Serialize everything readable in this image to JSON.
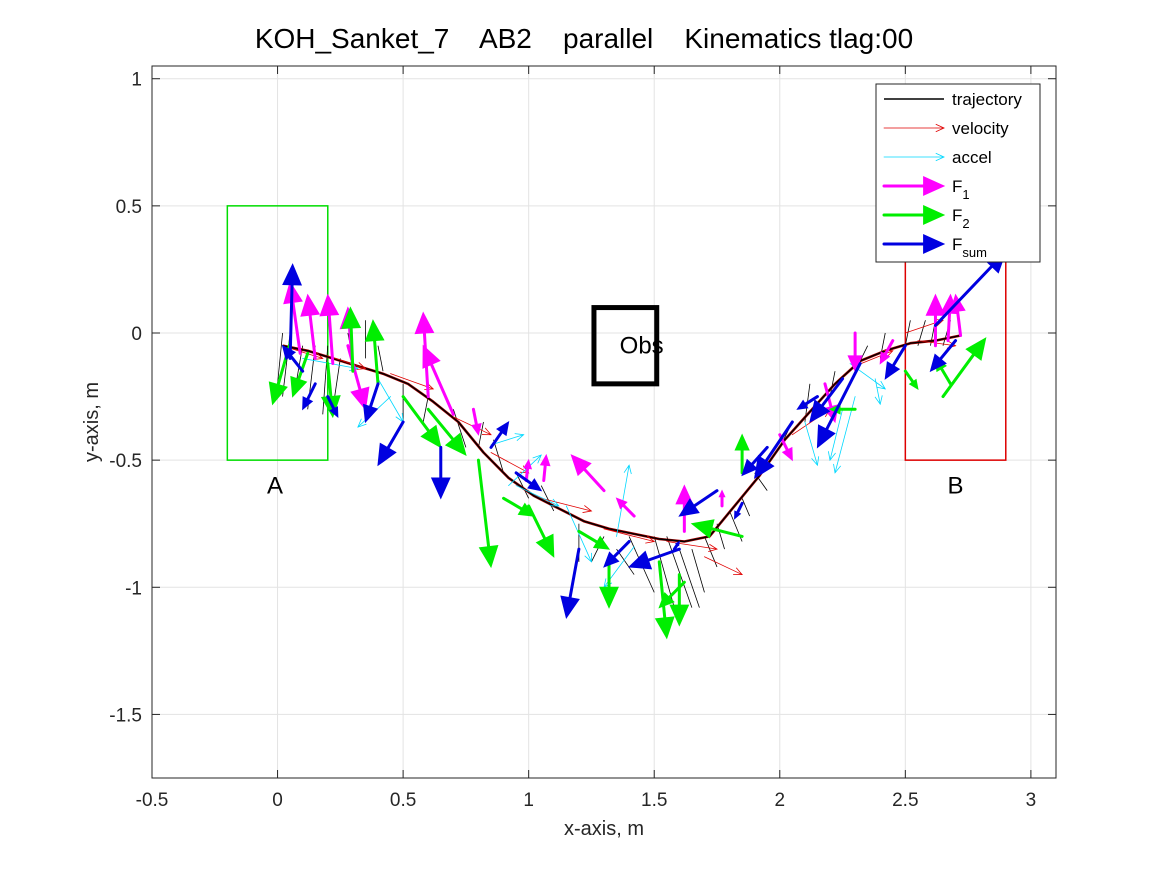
{
  "chart_data": {
    "type": "line",
    "title": "KOH_Sanket_7    AB2    parallel    Kinematics tlag:00",
    "xlabel": "x-axis, m",
    "ylabel": "y-axis, m",
    "xlim": [
      -0.5,
      3.1
    ],
    "ylim": [
      -1.75,
      1.05
    ],
    "x_ticks": [
      -0.5,
      0,
      0.5,
      1,
      1.5,
      2,
      2.5,
      3
    ],
    "x_tick_labels": [
      "-0.5",
      "0",
      "0.5",
      "1",
      "1.5",
      "2",
      "2.5",
      "3"
    ],
    "y_ticks": [
      -1.5,
      -1,
      -0.5,
      0,
      0.5,
      1
    ],
    "y_tick_labels": [
      "-1.5",
      "-1",
      "-0.5",
      "0",
      "0.5",
      "1"
    ],
    "grid": true,
    "legend_position": "top-right",
    "legend": [
      {
        "label": "trajectory",
        "sub": "",
        "color": "#000000",
        "kind": "line"
      },
      {
        "label": "velocity",
        "sub": "",
        "color": "#e00000",
        "kind": "thin-arrow"
      },
      {
        "label": "accel",
        "sub": "",
        "color": "#00d8ff",
        "kind": "thin-arrow"
      },
      {
        "label": "F",
        "sub": "1",
        "color": "#ff00ff",
        "kind": "thick-arrow"
      },
      {
        "label": "F",
        "sub": "2",
        "color": "#00ee00",
        "kind": "thick-arrow"
      },
      {
        "label": "F",
        "sub": "sum",
        "color": "#0000e0",
        "kind": "thick-arrow"
      }
    ],
    "regions": [
      {
        "label": "A",
        "color": "#00dd00",
        "x": [
          -0.2,
          0.2
        ],
        "y": [
          -0.5,
          0.5
        ],
        "label_at": [
          -0.01,
          -0.6
        ],
        "line_width": 1.5
      },
      {
        "label": "B",
        "color": "#dd0000",
        "x": [
          2.5,
          2.9
        ],
        "y": [
          -0.5,
          0.3
        ],
        "label_at": [
          2.7,
          -0.6
        ],
        "line_width": 1.5
      },
      {
        "label": "Obs",
        "color": "#000000",
        "x": [
          1.26,
          1.51
        ],
        "y": [
          -0.2,
          0.1
        ],
        "label_at": [
          1.45,
          -0.05
        ],
        "line_width": 5
      }
    ],
    "trajectory": {
      "x": [
        0.02,
        0.12,
        0.22,
        0.32,
        0.42,
        0.52,
        0.62,
        0.72,
        0.82,
        0.92,
        1.02,
        1.12,
        1.22,
        1.32,
        1.42,
        1.52,
        1.62,
        1.72,
        1.82,
        1.92,
        2.02,
        2.12,
        2.22,
        2.32,
        2.42,
        2.52,
        2.62,
        2.72
      ],
      "y": [
        -0.05,
        -0.07,
        -0.1,
        -0.13,
        -0.16,
        -0.2,
        -0.27,
        -0.35,
        -0.47,
        -0.57,
        -0.64,
        -0.69,
        -0.74,
        -0.77,
        -0.79,
        -0.81,
        -0.82,
        -0.8,
        -0.68,
        -0.56,
        -0.42,
        -0.31,
        -0.2,
        -0.11,
        -0.07,
        -0.04,
        -0.03,
        -0.01
      ]
    },
    "vector_series": [
      {
        "name": "velocity",
        "color": "#e00000",
        "width": 0.8,
        "head": 0.7,
        "vectors": [
          [
            0.05,
            -0.06,
            0.18,
            -0.1
          ],
          [
            0.2,
            -0.09,
            0.35,
            -0.14
          ],
          [
            0.45,
            -0.16,
            0.62,
            -0.22
          ],
          [
            0.7,
            -0.33,
            0.85,
            -0.4
          ],
          [
            0.85,
            -0.47,
            1.0,
            -0.55
          ],
          [
            1.05,
            -0.65,
            1.25,
            -0.7
          ],
          [
            1.3,
            -0.77,
            1.5,
            -0.82
          ],
          [
            1.55,
            -0.82,
            1.75,
            -0.85
          ],
          [
            1.7,
            -0.88,
            1.85,
            -0.95
          ],
          [
            2.05,
            -0.4,
            2.2,
            -0.3
          ],
          [
            2.3,
            -0.13,
            2.45,
            -0.07
          ],
          [
            2.5,
            0.0,
            2.65,
            0.05
          ],
          [
            2.55,
            -0.03,
            2.7,
            -0.05
          ]
        ]
      },
      {
        "name": "accel",
        "color": "#00d8ff",
        "width": 0.8,
        "head": 0.7,
        "vectors": [
          [
            0.1,
            -0.1,
            0.32,
            -0.14
          ],
          [
            0.4,
            -0.18,
            0.5,
            -0.35
          ],
          [
            0.45,
            -0.25,
            0.32,
            -0.37
          ],
          [
            0.85,
            -0.44,
            0.98,
            -0.4
          ],
          [
            0.92,
            -0.6,
            1.05,
            -0.48
          ],
          [
            0.95,
            -0.6,
            1.12,
            -0.68
          ],
          [
            1.15,
            -0.68,
            1.25,
            -0.9
          ],
          [
            1.35,
            -0.8,
            1.4,
            -0.52
          ],
          [
            1.42,
            -0.84,
            1.3,
            -1.0
          ],
          [
            2.1,
            -0.35,
            2.15,
            -0.52
          ],
          [
            2.25,
            -0.3,
            2.2,
            -0.5
          ],
          [
            2.28,
            -0.12,
            2.42,
            -0.22
          ],
          [
            2.38,
            -0.18,
            2.4,
            -0.28
          ],
          [
            2.3,
            -0.25,
            2.22,
            -0.55
          ]
        ]
      },
      {
        "name": "F1",
        "color": "#ff00ff",
        "width": 3,
        "head": 1.2,
        "vectors": [
          [
            0.09,
            -0.08,
            0.05,
            0.2
          ],
          [
            0.15,
            -0.1,
            0.12,
            0.15
          ],
          [
            0.22,
            -0.12,
            0.2,
            0.15
          ],
          [
            0.3,
            -0.15,
            0.28,
            0.1
          ],
          [
            0.28,
            -0.05,
            0.35,
            -0.3
          ],
          [
            0.6,
            -0.25,
            0.58,
            0.08
          ],
          [
            0.7,
            -0.32,
            0.58,
            -0.05
          ],
          [
            0.78,
            -0.3,
            0.8,
            -0.4
          ],
          [
            0.99,
            -0.58,
            1.0,
            -0.5
          ],
          [
            1.06,
            -0.58,
            1.07,
            -0.48
          ],
          [
            1.3,
            -0.62,
            1.17,
            -0.48
          ],
          [
            1.42,
            -0.72,
            1.35,
            -0.65
          ],
          [
            1.62,
            -0.78,
            1.62,
            -0.6
          ],
          [
            1.77,
            -0.68,
            1.77,
            -0.62
          ],
          [
            2.0,
            -0.4,
            2.05,
            -0.5
          ],
          [
            2.18,
            -0.2,
            2.22,
            -0.35
          ],
          [
            2.3,
            0.0,
            2.3,
            -0.15
          ],
          [
            2.45,
            -0.03,
            2.4,
            -0.12
          ],
          [
            2.62,
            -0.05,
            2.62,
            0.15
          ],
          [
            2.67,
            -0.03,
            2.68,
            0.15
          ],
          [
            2.72,
            -0.01,
            2.7,
            0.15
          ]
        ]
      },
      {
        "name": "F2",
        "color": "#00ee00",
        "width": 3,
        "head": 1.2,
        "vectors": [
          [
            0.05,
            -0.04,
            -0.02,
            -0.28
          ],
          [
            0.12,
            -0.08,
            0.06,
            -0.25
          ],
          [
            0.2,
            -0.12,
            0.22,
            -0.33
          ],
          [
            0.3,
            -0.15,
            0.29,
            0.1
          ],
          [
            0.4,
            -0.2,
            0.38,
            0.05
          ],
          [
            0.5,
            -0.25,
            0.65,
            -0.45
          ],
          [
            0.6,
            -0.3,
            0.75,
            -0.48
          ],
          [
            0.8,
            -0.5,
            0.85,
            -0.92
          ],
          [
            0.9,
            -0.65,
            1.02,
            -0.72
          ],
          [
            1.0,
            -0.68,
            1.1,
            -0.88
          ],
          [
            1.2,
            -0.78,
            1.32,
            -0.85
          ],
          [
            1.32,
            -0.88,
            1.32,
            -1.08
          ],
          [
            1.52,
            -0.9,
            1.55,
            -1.2
          ],
          [
            1.6,
            -0.95,
            1.6,
            -1.15
          ],
          [
            1.62,
            -0.98,
            1.52,
            -1.08
          ],
          [
            1.85,
            -0.8,
            1.65,
            -0.75
          ],
          [
            1.85,
            -0.55,
            1.85,
            -0.4
          ],
          [
            2.3,
            -0.3,
            2.2,
            -0.3
          ],
          [
            2.5,
            -0.15,
            2.55,
            -0.22
          ],
          [
            2.65,
            -0.25,
            2.82,
            -0.02
          ],
          [
            2.68,
            -0.2,
            2.62,
            -0.1
          ]
        ]
      },
      {
        "name": "Fsum",
        "color": "#0000e0",
        "width": 3,
        "head": 1.2,
        "vectors": [
          [
            0.05,
            -0.1,
            0.06,
            0.27
          ],
          [
            0.1,
            -0.15,
            0.02,
            -0.05
          ],
          [
            0.15,
            -0.2,
            0.1,
            -0.3
          ],
          [
            0.2,
            -0.25,
            0.24,
            -0.33
          ],
          [
            0.4,
            -0.2,
            0.35,
            -0.35
          ],
          [
            0.5,
            -0.35,
            0.4,
            -0.52
          ],
          [
            0.65,
            -0.45,
            0.65,
            -0.65
          ],
          [
            0.85,
            -0.45,
            0.92,
            -0.35
          ],
          [
            0.95,
            -0.55,
            1.05,
            -0.62
          ],
          [
            1.2,
            -0.85,
            1.15,
            -1.12
          ],
          [
            1.4,
            -0.82,
            1.3,
            -0.92
          ],
          [
            1.6,
            -0.85,
            1.4,
            -0.92
          ],
          [
            1.58,
            -0.85,
            1.6,
            -0.82
          ],
          [
            1.75,
            -0.62,
            1.6,
            -0.72
          ],
          [
            1.85,
            -0.67,
            1.82,
            -0.73
          ],
          [
            1.95,
            -0.45,
            1.85,
            -0.56
          ],
          [
            2.05,
            -0.35,
            1.9,
            -0.57
          ],
          [
            2.15,
            -0.25,
            2.07,
            -0.3
          ],
          [
            2.25,
            -0.18,
            2.12,
            -0.35
          ],
          [
            2.32,
            -0.12,
            2.15,
            -0.45
          ],
          [
            2.5,
            -0.05,
            2.42,
            -0.18
          ],
          [
            2.62,
            0.03,
            2.9,
            0.32
          ],
          [
            2.7,
            -0.03,
            2.6,
            -0.15
          ]
        ]
      }
    ],
    "oscillation_lines": {
      "color": "#000000",
      "width": 0.8,
      "segments": [
        [
          0.02,
          0.0,
          0.0,
          -0.2
        ],
        [
          0.05,
          0.0,
          0.02,
          -0.25
        ],
        [
          0.1,
          -0.05,
          0.07,
          -0.22
        ],
        [
          0.15,
          -0.05,
          0.12,
          -0.3
        ],
        [
          0.2,
          -0.05,
          0.18,
          -0.32
        ],
        [
          0.25,
          -0.1,
          0.22,
          -0.3
        ],
        [
          0.3,
          -0.1,
          0.28,
          0.0
        ],
        [
          0.35,
          -0.1,
          0.35,
          0.05
        ],
        [
          0.42,
          -0.15,
          0.4,
          -0.05
        ],
        [
          0.5,
          -0.2,
          0.5,
          -0.35
        ],
        [
          0.6,
          -0.25,
          0.58,
          -0.35
        ],
        [
          0.7,
          -0.3,
          0.75,
          -0.45
        ],
        [
          0.8,
          -0.45,
          0.82,
          -0.35
        ],
        [
          0.9,
          -0.55,
          0.86,
          -0.42
        ],
        [
          1.0,
          -0.65,
          0.95,
          -0.55
        ],
        [
          1.1,
          -0.7,
          1.05,
          -0.6
        ],
        [
          1.2,
          -0.75,
          1.2,
          -0.9
        ],
        [
          1.3,
          -0.8,
          1.25,
          -0.9
        ],
        [
          1.35,
          -0.85,
          1.42,
          -0.95
        ],
        [
          1.4,
          -0.8,
          1.5,
          -1.02
        ],
        [
          1.5,
          -0.8,
          1.58,
          -1.08
        ],
        [
          1.55,
          -0.8,
          1.65,
          -1.08
        ],
        [
          1.6,
          -0.85,
          1.68,
          -1.08
        ],
        [
          1.65,
          -0.85,
          1.7,
          -1.02
        ],
        [
          1.7,
          -0.8,
          1.75,
          -0.92
        ],
        [
          1.75,
          -0.75,
          1.78,
          -0.85
        ],
        [
          1.8,
          -0.7,
          1.85,
          -0.82
        ],
        [
          1.85,
          -0.65,
          1.88,
          -0.72
        ],
        [
          1.9,
          -0.55,
          1.95,
          -0.62
        ],
        [
          2.0,
          -0.45,
          2.05,
          -0.35
        ],
        [
          2.1,
          -0.35,
          2.12,
          -0.2
        ],
        [
          2.2,
          -0.25,
          2.22,
          -0.15
        ],
        [
          2.3,
          -0.15,
          2.35,
          -0.05
        ],
        [
          2.4,
          -0.1,
          2.42,
          0.0
        ],
        [
          2.5,
          -0.05,
          2.52,
          0.05
        ],
        [
          2.55,
          -0.05,
          2.58,
          0.05
        ],
        [
          2.6,
          -0.05,
          2.62,
          0.05
        ],
        [
          2.65,
          -0.05,
          2.68,
          0.05
        ]
      ]
    }
  }
}
